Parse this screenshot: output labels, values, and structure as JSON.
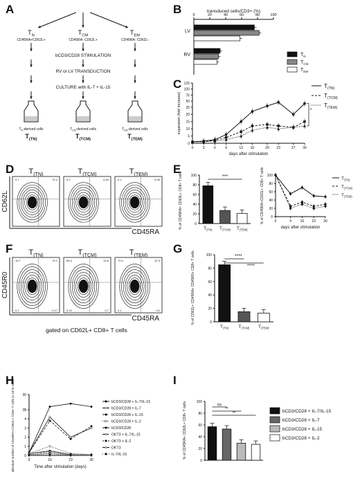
{
  "panels": {
    "A": "A",
    "B": "B",
    "C": "C",
    "D": "D",
    "E": "E",
    "F": "F",
    "G": "G",
    "H": "H",
    "I": "I"
  },
  "diagram_a": {
    "pops": [
      {
        "name": "T",
        "sub": "N",
        "markers": "CD45RA+CD62L+"
      },
      {
        "name": "T",
        "sub": "CM",
        "markers": "CD45RA- CD62L+"
      },
      {
        "name": "T",
        "sub": "EM",
        "markers": "CD45RA- CD62L-"
      }
    ],
    "step1": "bCD3/CD28 STIMULATION",
    "step2": "RV or LV TRANSDUCTION",
    "step3": "CULTURE with IL-7 + IL-15",
    "derived": [
      {
        "prefix": "T",
        "sub": "N",
        "suffix": "-derived cells",
        "label": "T",
        "lsub": "(TN)"
      },
      {
        "prefix": "T",
        "sub": "CM",
        "suffix": "-derived cells",
        "label": "T",
        "lsub": "(TCM)"
      },
      {
        "prefix": "T",
        "sub": "EM",
        "suffix": "-derived cells",
        "label": "T",
        "lsub": "(TEM)"
      }
    ]
  },
  "flow_d": {
    "titles": [
      "T(TN)",
      "T(TCM)",
      "T(TEM)"
    ],
    "quads": [
      [
        "0.7",
        "70.4"
      ],
      [
        "0.2",
        "6.40"
      ],
      [
        "0.1",
        "6.30"
      ]
    ],
    "ylabel": "CD62L",
    "xlabel": "CD45RA"
  },
  "flow_f": {
    "titles": [
      "T(TN)",
      "T(TCM)",
      "T(TEM)"
    ],
    "quads": [
      [
        "10.7",
        "79.1",
        "0.1",
        "0.17"
      ],
      [
        "84.4",
        "14.6",
        "0.13",
        "0.7"
      ],
      [
        "72.4",
        "22.3",
        "0.1",
        "0.1"
      ]
    ],
    "ylabel": "CD45R0",
    "xlabel": "CD45RA",
    "gate": "gated on CD62L+ CD8+ T cells"
  },
  "chart_data": [
    {
      "panel": "B",
      "type": "bar",
      "orientation": "horizontal",
      "title": "transduced cells/CD3+ (%)",
      "xlim": [
        0,
        100
      ],
      "ticks": [
        0,
        20,
        40,
        60,
        80,
        100
      ],
      "groups": [
        "LV",
        "RV"
      ],
      "series": [
        {
          "name": "TN",
          "values": [
            76,
            33
          ],
          "color": "#111111"
        },
        {
          "name": "TCM",
          "values": [
            82,
            31
          ],
          "color": "#888888"
        },
        {
          "name": "TEM",
          "values": [
            58,
            29
          ],
          "color": "#ffffff"
        }
      ]
    },
    {
      "panel": "C",
      "type": "line",
      "ylabel": "expansion (fold increase)",
      "xlabel": "days after stimulation",
      "x": [
        0,
        3,
        6,
        9,
        13,
        16,
        20,
        23,
        27,
        30
      ],
      "ytick_labels": [
        "0",
        "5",
        "10",
        "15",
        "20",
        "25",
        "50",
        "75",
        "100",
        "125"
      ],
      "series": [
        {
          "name": "T(TN)",
          "values": [
            1,
            1.5,
            2.5,
            6,
            15,
            22,
            30,
            45,
            20,
            40
          ]
        },
        {
          "name": "T(TCM)",
          "values": [
            1,
            1.2,
            2,
            4,
            8,
            12,
            13,
            12,
            11,
            15
          ]
        },
        {
          "name": "T(TEM)",
          "values": [
            1,
            1,
            1.5,
            2.5,
            5,
            9,
            11,
            10,
            11,
            12
          ]
        }
      ],
      "sig": "*"
    },
    {
      "panel": "E1",
      "type": "bar",
      "ylabel": "% of CD45RA+ CD62L+ CD8+ T cells",
      "categories": [
        "T(TN)",
        "T(TCM)",
        "T(TEM)"
      ],
      "values": [
        78,
        27,
        21
      ],
      "ylim": [
        0,
        100
      ],
      "ticks": [
        0,
        20,
        40,
        60,
        80,
        100
      ],
      "sig": "***"
    },
    {
      "panel": "E2",
      "type": "line",
      "ylabel": "% of CD45RA+CD62L+ CD8+ T cells",
      "xlabel": "days after stimulation",
      "x": [
        0,
        9,
        16,
        23,
        30
      ],
      "ylim": [
        0,
        100
      ],
      "ticks": [
        0,
        20,
        40,
        60,
        80,
        100
      ],
      "series": [
        {
          "name": "T(TN)",
          "values": [
            100,
            55,
            70,
            50,
            48
          ]
        },
        {
          "name": "T(TCM)",
          "values": [
            100,
            25,
            35,
            25,
            30
          ]
        },
        {
          "name": "T(TEM)",
          "values": [
            100,
            20,
            30,
            20,
            25
          ]
        }
      ]
    },
    {
      "panel": "G",
      "type": "bar",
      "ylabel": "% of CD62L+ CD45RA+ CD45R0+ CD8+ T cells",
      "categories": [
        "T(TN)",
        "T(TCM)",
        "T(TEM)"
      ],
      "values": [
        85,
        15,
        13
      ],
      "ylim": [
        0,
        100
      ],
      "ticks": [
        0,
        20,
        40,
        60,
        80,
        100
      ],
      "sig": "****"
    },
    {
      "panel": "H",
      "type": "line",
      "ylabel": "absolute number of CD45RA+CD62L+ CD8+ T cells (x 10^6 cells)",
      "xlabel": "Time after stimulation (days)",
      "x": [
        9,
        16,
        23,
        30
      ],
      "ytick_labels": [
        "0",
        "1",
        "2",
        "3",
        "4",
        "5",
        "25",
        "30"
      ],
      "series": [
        {
          "name": "bCD3/CD28 + IL-7/IL-15",
          "values": [
            0.3,
            26,
            27,
            26
          ]
        },
        {
          "name": "bCD3/CD28 + IL-7",
          "values": [
            0.3,
            4.2,
            2,
            3
          ]
        },
        {
          "name": "bCD3/CD28 + IL-15",
          "values": [
            0.3,
            3.8,
            1.8,
            3.2
          ]
        },
        {
          "name": "bCD3/CD28 + IL-2",
          "values": [
            0.2,
            1.0,
            0.2,
            0.1
          ]
        },
        {
          "name": "bCD3/CD28",
          "values": [
            0.2,
            0.5,
            0.1,
            0.05
          ]
        },
        {
          "name": "OKT3 + IL-7/IL-15",
          "values": [
            0.2,
            0.4,
            0.1,
            0.05
          ]
        },
        {
          "name": "OKT3 + IL-2",
          "values": [
            0.1,
            0.3,
            0.05,
            0.05
          ]
        },
        {
          "name": "OKT3",
          "values": [
            0.1,
            0.2,
            0.05,
            0.05
          ]
        },
        {
          "name": "IL-7/IL-15",
          "values": [
            0.05,
            0.1,
            0.05,
            0.05
          ]
        }
      ]
    },
    {
      "panel": "I",
      "type": "bar",
      "ylabel": "% of CD45RA+ CD62L+ CD8+ T cells",
      "categories": [
        "bCD3/CD28 + IL-7/IL-15",
        "bCD3/CD28 + IL-7",
        "bCD3/CD28 + IL-15",
        "bCD3/CD28 + IL-2"
      ],
      "values": [
        57,
        53,
        29,
        27
      ],
      "ylim": [
        0,
        100
      ],
      "ticks": [
        0,
        20,
        40,
        60,
        80,
        100
      ],
      "colors": [
        "#111111",
        "#666666",
        "#bbbbbb",
        "#ffffff"
      ],
      "sig": [
        "ns",
        "**",
        "**"
      ]
    }
  ]
}
